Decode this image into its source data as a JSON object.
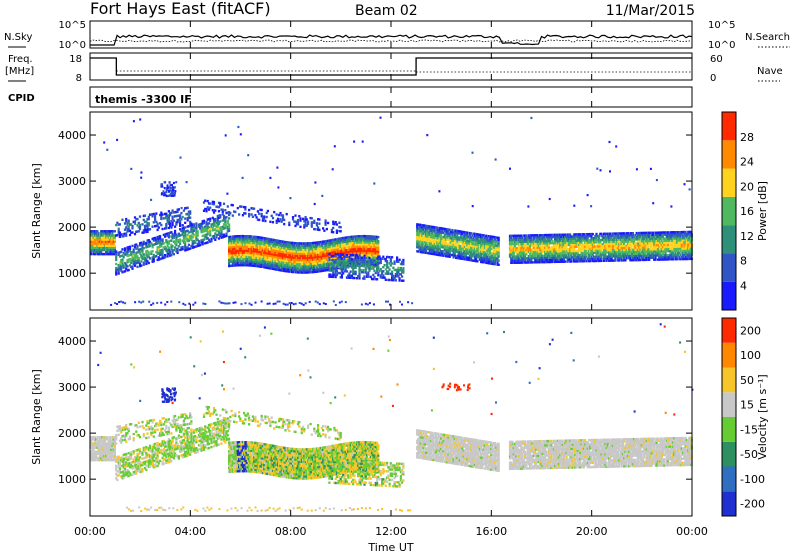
{
  "header": {
    "title": "Fort Hays East (fitACF)",
    "beam": "Beam 02",
    "date": "11/Mar/2015"
  },
  "noise_panel": {
    "left_label": "N.Sky",
    "left_ticks": [
      "10^5",
      "10^0"
    ],
    "right_label": "N.Search",
    "right_ticks": [
      "10^5",
      "10^0"
    ]
  },
  "freq_panel": {
    "left_label_line1": "Freq.",
    "left_label_line2": "[MHz]",
    "left_ticks": [
      "18",
      "8"
    ],
    "right_label": "Nave",
    "right_ticks": [
      "60",
      "0"
    ],
    "cpid_label": "CPID",
    "cpid_text": "themis -3300 IF"
  },
  "chart_data": [
    {
      "type": "heatmap",
      "name": "power",
      "ylabel": "Slant Range [km]",
      "ylim": [
        200,
        4500
      ],
      "yticks": [
        "1000",
        "2000",
        "3000",
        "4000"
      ],
      "xlim_hours": [
        0,
        24
      ],
      "colorbar": {
        "label": "Power [dB]",
        "ticks": [
          "4",
          "8",
          "12",
          "16",
          "20",
          "24",
          "28"
        ],
        "colors": [
          "#1a1aff",
          "#2f55c6",
          "#2e8f7a",
          "#4fb860",
          "#ffd21e",
          "#ff8a00",
          "#ff2a00"
        ]
      }
    },
    {
      "type": "heatmap",
      "name": "velocity",
      "ylabel": "Slant Range [km]",
      "ylim": [
        200,
        4500
      ],
      "yticks": [
        "1000",
        "2000",
        "3000",
        "4000"
      ],
      "xlim_hours": [
        0,
        24
      ],
      "xlabel": "Time UT",
      "xticks": [
        "00:00",
        "04:00",
        "08:00",
        "12:00",
        "16:00",
        "20:00",
        "00:00"
      ],
      "colorbar": {
        "label": "Velocity [m s⁻¹]",
        "ticks": [
          "200",
          "100",
          "50",
          "15",
          "-15",
          "-50",
          "-100",
          "-200"
        ],
        "colors": [
          "#1f2fd0",
          "#2f6ec0",
          "#2e8f60",
          "#66cc33",
          "#c8c8c8",
          "#f5c52a",
          "#ff8800",
          "#ff2a00"
        ]
      }
    }
  ]
}
